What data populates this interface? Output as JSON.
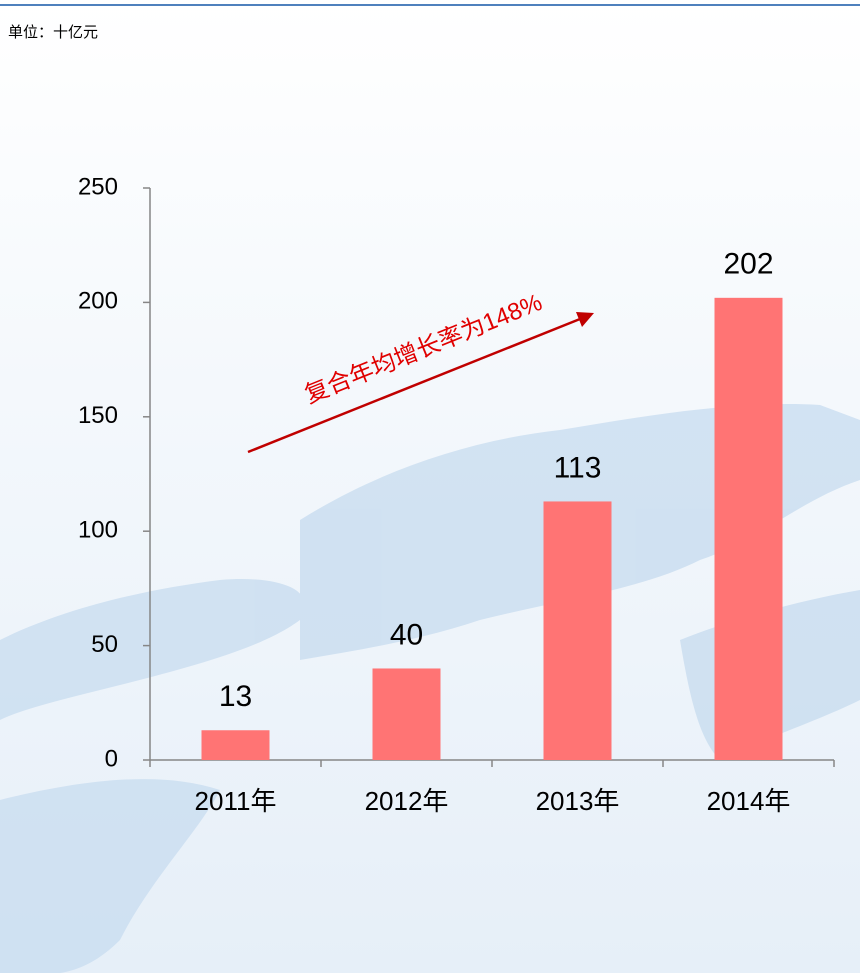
{
  "chart_data": {
    "type": "bar",
    "unit_label": "单位：十亿元",
    "categories": [
      "2011年",
      "2012年",
      "2013年",
      "2014年"
    ],
    "values": [
      13,
      40,
      113,
      202
    ],
    "color": "#ff7474",
    "ylim": [
      0,
      250
    ],
    "yticks": [
      0,
      50,
      100,
      150,
      200,
      250
    ],
    "annotation": "复合年均增长率为148%",
    "annotation_color": "#e00000"
  }
}
